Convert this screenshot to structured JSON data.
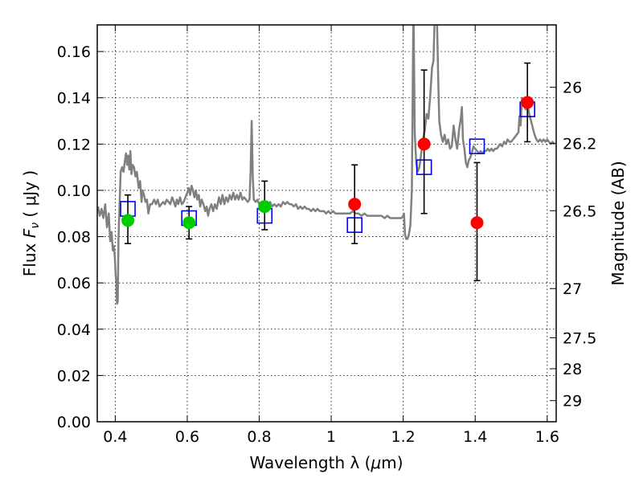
{
  "chart_data": {
    "type": "scatter",
    "xlabel_prefix": "Wavelength  λ (",
    "xlabel_unit_symbol": "μ",
    "xlabel_suffix": "m)",
    "ylabel_prefix": "Flux  ",
    "ylabel_var": "F",
    "ylabel_sub": "ν",
    "ylabel_suffix": "  ( μJy )",
    "y2label": "Magnitude (AB)",
    "xlim": [
      0.35,
      1.625
    ],
    "ylim": [
      0.0,
      0.1715
    ],
    "grid": true,
    "xticks": [
      {
        "value": 0.4,
        "label": "0.4"
      },
      {
        "value": 0.6,
        "label": "0.6"
      },
      {
        "value": 0.8,
        "label": "0.8"
      },
      {
        "value": 1.0,
        "label": "1"
      },
      {
        "value": 1.2,
        "label": "1.2"
      },
      {
        "value": 1.4,
        "label": "1.4"
      },
      {
        "value": 1.6,
        "label": "1.6"
      }
    ],
    "yticks": [
      {
        "value": 0.0,
        "label": "0.00"
      },
      {
        "value": 0.02,
        "label": "0.02"
      },
      {
        "value": 0.04,
        "label": "0.04"
      },
      {
        "value": 0.06,
        "label": "0.06"
      },
      {
        "value": 0.08,
        "label": "0.08"
      },
      {
        "value": 0.1,
        "label": "0.10"
      },
      {
        "value": 0.12,
        "label": "0.12"
      },
      {
        "value": 0.14,
        "label": "0.14"
      },
      {
        "value": 0.16,
        "label": "0.16"
      }
    ],
    "y2ticks": [
      {
        "value": 26.0,
        "label": "26"
      },
      {
        "value": 26.2,
        "label": "26.2"
      },
      {
        "value": 26.5,
        "label": "26.5"
      },
      {
        "value": 27.0,
        "label": "27"
      },
      {
        "value": 27.5,
        "label": "27.5"
      },
      {
        "value": 28.0,
        "label": "28"
      },
      {
        "value": 29.0,
        "label": "29"
      }
    ],
    "y2_zeropoint_mag": 23.9,
    "series": [
      {
        "kind": "line",
        "color": "#808080",
        "points": [
          [
            0.352,
            0.093
          ],
          [
            0.357,
            0.089
          ],
          [
            0.362,
            0.092
          ],
          [
            0.367,
            0.088
          ],
          [
            0.372,
            0.094
          ],
          [
            0.377,
            0.084
          ],
          [
            0.382,
            0.09
          ],
          [
            0.386,
            0.078
          ],
          [
            0.39,
            0.082
          ],
          [
            0.393,
            0.074
          ],
          [
            0.396,
            0.076
          ],
          [
            0.399,
            0.071
          ],
          [
            0.401,
            0.064
          ],
          [
            0.403,
            0.06
          ],
          [
            0.405,
            0.051
          ],
          [
            0.407,
            0.052
          ],
          [
            0.409,
            0.079
          ],
          [
            0.412,
            0.094
          ],
          [
            0.415,
            0.108
          ],
          [
            0.419,
            0.11
          ],
          [
            0.423,
            0.108
          ],
          [
            0.427,
            0.113
          ],
          [
            0.43,
            0.116
          ],
          [
            0.433,
            0.111
          ],
          [
            0.436,
            0.115
          ],
          [
            0.439,
            0.109
          ],
          [
            0.442,
            0.117
          ],
          [
            0.445,
            0.107
          ],
          [
            0.448,
            0.111
          ],
          [
            0.452,
            0.11
          ],
          [
            0.456,
            0.106
          ],
          [
            0.46,
            0.108
          ],
          [
            0.465,
            0.101
          ],
          [
            0.469,
            0.104
          ],
          [
            0.473,
            0.095
          ],
          [
            0.476,
            0.1
          ],
          [
            0.48,
            0.098
          ],
          [
            0.484,
            0.095
          ],
          [
            0.488,
            0.096
          ],
          [
            0.492,
            0.09
          ],
          [
            0.497,
            0.094
          ],
          [
            0.502,
            0.094
          ],
          [
            0.508,
            0.096
          ],
          [
            0.513,
            0.094
          ],
          [
            0.518,
            0.096
          ],
          [
            0.523,
            0.093
          ],
          [
            0.528,
            0.094
          ],
          [
            0.533,
            0.095
          ],
          [
            0.538,
            0.094
          ],
          [
            0.543,
            0.096
          ],
          [
            0.548,
            0.095
          ],
          [
            0.553,
            0.094
          ],
          [
            0.558,
            0.097
          ],
          [
            0.563,
            0.095
          ],
          [
            0.567,
            0.093
          ],
          [
            0.571,
            0.096
          ],
          [
            0.575,
            0.094
          ],
          [
            0.58,
            0.097
          ],
          [
            0.585,
            0.094
          ],
          [
            0.59,
            0.095
          ],
          [
            0.595,
            0.097
          ],
          [
            0.6,
            0.099
          ],
          [
            0.604,
            0.101
          ],
          [
            0.608,
            0.098
          ],
          [
            0.612,
            0.102
          ],
          [
            0.616,
            0.1
          ],
          [
            0.62,
            0.097
          ],
          [
            0.624,
            0.1
          ],
          [
            0.628,
            0.096
          ],
          [
            0.632,
            0.098
          ],
          [
            0.636,
            0.093
          ],
          [
            0.64,
            0.096
          ],
          [
            0.645,
            0.094
          ],
          [
            0.65,
            0.091
          ],
          [
            0.654,
            0.093
          ],
          [
            0.658,
            0.089
          ],
          [
            0.662,
            0.092
          ],
          [
            0.667,
            0.094
          ],
          [
            0.672,
            0.091
          ],
          [
            0.677,
            0.094
          ],
          [
            0.682,
            0.092
          ],
          [
            0.688,
            0.097
          ],
          [
            0.693,
            0.094
          ],
          [
            0.698,
            0.098
          ],
          [
            0.703,
            0.094
          ],
          [
            0.708,
            0.097
          ],
          [
            0.713,
            0.095
          ],
          [
            0.718,
            0.098
          ],
          [
            0.723,
            0.096
          ],
          [
            0.728,
            0.099
          ],
          [
            0.733,
            0.096
          ],
          [
            0.738,
            0.098
          ],
          [
            0.743,
            0.096
          ],
          [
            0.748,
            0.099
          ],
          [
            0.753,
            0.096
          ],
          [
            0.758,
            0.097
          ],
          [
            0.763,
            0.096
          ],
          [
            0.768,
            0.095
          ],
          [
            0.773,
            0.096
          ],
          [
            0.776,
            0.108
          ],
          [
            0.779,
            0.13
          ],
          [
            0.782,
            0.106
          ],
          [
            0.785,
            0.096
          ],
          [
            0.79,
            0.095
          ],
          [
            0.795,
            0.096
          ],
          [
            0.8,
            0.094
          ],
          [
            0.806,
            0.095
          ],
          [
            0.812,
            0.094
          ],
          [
            0.818,
            0.095
          ],
          [
            0.824,
            0.093
          ],
          [
            0.83,
            0.095
          ],
          [
            0.836,
            0.093
          ],
          [
            0.842,
            0.094
          ],
          [
            0.848,
            0.093
          ],
          [
            0.854,
            0.094
          ],
          [
            0.86,
            0.093
          ],
          [
            0.866,
            0.095
          ],
          [
            0.872,
            0.094
          ],
          [
            0.878,
            0.095
          ],
          [
            0.884,
            0.094
          ],
          [
            0.89,
            0.094
          ],
          [
            0.896,
            0.093
          ],
          [
            0.902,
            0.094
          ],
          [
            0.908,
            0.092
          ],
          [
            0.914,
            0.093
          ],
          [
            0.92,
            0.092
          ],
          [
            0.926,
            0.093
          ],
          [
            0.932,
            0.092
          ],
          [
            0.938,
            0.092
          ],
          [
            0.944,
            0.091
          ],
          [
            0.95,
            0.092
          ],
          [
            0.956,
            0.091
          ],
          [
            0.962,
            0.092
          ],
          [
            0.968,
            0.091
          ],
          [
            0.974,
            0.091
          ],
          [
            0.98,
            0.091
          ],
          [
            0.986,
            0.09
          ],
          [
            0.992,
            0.091
          ],
          [
            0.998,
            0.09
          ],
          [
            1.005,
            0.091
          ],
          [
            1.012,
            0.09
          ],
          [
            1.02,
            0.09
          ],
          [
            1.028,
            0.09
          ],
          [
            1.036,
            0.09
          ],
          [
            1.044,
            0.09
          ],
          [
            1.052,
            0.09
          ],
          [
            1.06,
            0.091
          ],
          [
            1.068,
            0.09
          ],
          [
            1.076,
            0.09
          ],
          [
            1.084,
            0.089
          ],
          [
            1.092,
            0.09
          ],
          [
            1.1,
            0.089
          ],
          [
            1.108,
            0.089
          ],
          [
            1.116,
            0.089
          ],
          [
            1.124,
            0.089
          ],
          [
            1.132,
            0.089
          ],
          [
            1.14,
            0.089
          ],
          [
            1.148,
            0.088
          ],
          [
            1.156,
            0.089
          ],
          [
            1.164,
            0.088
          ],
          [
            1.172,
            0.088
          ],
          [
            1.18,
            0.088
          ],
          [
            1.188,
            0.088
          ],
          [
            1.195,
            0.088
          ],
          [
            1.2,
            0.089
          ],
          [
            1.202,
            0.09
          ],
          [
            1.205,
            0.081
          ],
          [
            1.208,
            0.079
          ],
          [
            1.212,
            0.079
          ],
          [
            1.216,
            0.081
          ],
          [
            1.22,
            0.085
          ],
          [
            1.224,
            0.1
          ],
          [
            1.228,
            0.172
          ],
          [
            1.229,
            0.172
          ],
          [
            1.232,
            0.125
          ],
          [
            1.236,
            0.112
          ],
          [
            1.24,
            0.108
          ],
          [
            1.245,
            0.11
          ],
          [
            1.25,
            0.116
          ],
          [
            1.255,
            0.122
          ],
          [
            1.26,
            0.126
          ],
          [
            1.265,
            0.133
          ],
          [
            1.27,
            0.131
          ],
          [
            1.275,
            0.141
          ],
          [
            1.28,
            0.153
          ],
          [
            1.284,
            0.156
          ],
          [
            1.287,
            0.172
          ],
          [
            1.288,
            0.172
          ],
          [
            1.294,
            0.172
          ],
          [
            1.297,
            0.15
          ],
          [
            1.3,
            0.13
          ],
          [
            1.305,
            0.124
          ],
          [
            1.31,
            0.121
          ],
          [
            1.315,
            0.124
          ],
          [
            1.32,
            0.12
          ],
          [
            1.325,
            0.122
          ],
          [
            1.33,
            0.118
          ],
          [
            1.335,
            0.119
          ],
          [
            1.34,
            0.128
          ],
          [
            1.345,
            0.122
          ],
          [
            1.35,
            0.118
          ],
          [
            1.355,
            0.126
          ],
          [
            1.36,
            0.131
          ],
          [
            1.363,
            0.136
          ],
          [
            1.366,
            0.122
          ],
          [
            1.37,
            0.118
          ],
          [
            1.374,
            0.112
          ],
          [
            1.378,
            0.11
          ],
          [
            1.382,
            0.113
          ],
          [
            1.386,
            0.114
          ],
          [
            1.39,
            0.116
          ],
          [
            1.395,
            0.119
          ],
          [
            1.4,
            0.118
          ],
          [
            1.405,
            0.117
          ],
          [
            1.41,
            0.116
          ],
          [
            1.415,
            0.117
          ],
          [
            1.42,
            0.116
          ],
          [
            1.425,
            0.117
          ],
          [
            1.43,
            0.117
          ],
          [
            1.435,
            0.118
          ],
          [
            1.44,
            0.117
          ],
          [
            1.445,
            0.118
          ],
          [
            1.45,
            0.117
          ],
          [
            1.455,
            0.118
          ],
          [
            1.46,
            0.118
          ],
          [
            1.465,
            0.119
          ],
          [
            1.47,
            0.12
          ],
          [
            1.475,
            0.119
          ],
          [
            1.48,
            0.121
          ],
          [
            1.485,
            0.12
          ],
          [
            1.49,
            0.122
          ],
          [
            1.495,
            0.121
          ],
          [
            1.5,
            0.121
          ],
          [
            1.505,
            0.122
          ],
          [
            1.51,
            0.123
          ],
          [
            1.515,
            0.124
          ],
          [
            1.52,
            0.125
          ],
          [
            1.523,
            0.132
          ],
          [
            1.526,
            0.128
          ],
          [
            1.53,
            0.14
          ],
          [
            1.535,
            0.137
          ],
          [
            1.54,
            0.135
          ],
          [
            1.545,
            0.138
          ],
          [
            1.55,
            0.133
          ],
          [
            1.555,
            0.13
          ],
          [
            1.56,
            0.127
          ],
          [
            1.565,
            0.124
          ],
          [
            1.57,
            0.122
          ],
          [
            1.575,
            0.121
          ],
          [
            1.58,
            0.122
          ],
          [
            1.585,
            0.121
          ],
          [
            1.59,
            0.122
          ],
          [
            1.595,
            0.121
          ],
          [
            1.6,
            0.122
          ],
          [
            1.605,
            0.121
          ],
          [
            1.61,
            0.12
          ],
          [
            1.615,
            0.121
          ],
          [
            1.62,
            0.12
          ]
        ]
      },
      {
        "kind": "open-squares",
        "color": "#0000ff",
        "x": [
          0.435,
          0.605,
          0.815,
          1.065,
          1.258,
          1.405,
          1.545
        ],
        "y": [
          0.092,
          0.088,
          0.089,
          0.085,
          0.11,
          0.119,
          0.135
        ]
      },
      {
        "kind": "errorbars",
        "color": "#000000",
        "x": [
          0.435,
          0.605,
          0.815,
          1.065,
          1.258,
          1.405,
          1.545
        ],
        "ylow": [
          0.077,
          0.079,
          0.083,
          0.077,
          0.09,
          0.061,
          0.121
        ],
        "yhigh": [
          0.098,
          0.093,
          0.104,
          0.111,
          0.152,
          0.112,
          0.155
        ]
      },
      {
        "kind": "filled-circles",
        "color": "#00cc00",
        "x": [
          0.435,
          0.605,
          0.815
        ],
        "y": [
          0.087,
          0.086,
          0.093
        ]
      },
      {
        "kind": "filled-circles",
        "color": "#ff0000",
        "x": [
          1.065,
          1.258,
          1.405,
          1.545
        ],
        "y": [
          0.094,
          0.12,
          0.086,
          0.138
        ]
      }
    ]
  }
}
